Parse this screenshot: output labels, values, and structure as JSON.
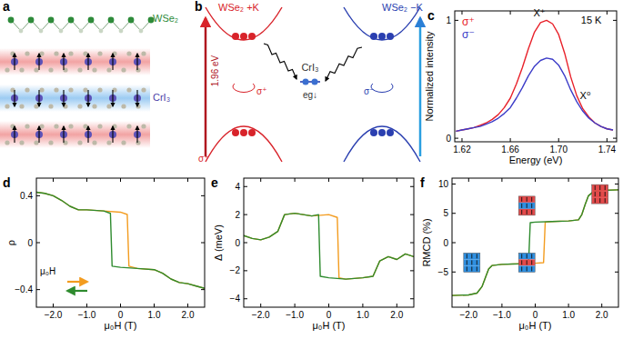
{
  "chart_data": [
    {
      "type": "line",
      "title": "c",
      "xlabel": "Energy (eV)",
      "ylabel": "Normalized intensity",
      "x": [
        1.615,
        1.62,
        1.625,
        1.63,
        1.635,
        1.64,
        1.645,
        1.65,
        1.655,
        1.66,
        1.665,
        1.67,
        1.675,
        1.68,
        1.685,
        1.69,
        1.695,
        1.7,
        1.705,
        1.71,
        1.715,
        1.72,
        1.725,
        1.73,
        1.735,
        1.74,
        1.745
      ],
      "series": [
        {
          "name": "σ⁺",
          "color": "#e8212a",
          "values": [
            0.06,
            0.07,
            0.08,
            0.09,
            0.11,
            0.13,
            0.16,
            0.2,
            0.26,
            0.34,
            0.46,
            0.6,
            0.76,
            0.9,
            0.98,
            1.0,
            0.97,
            0.88,
            0.72,
            0.52,
            0.36,
            0.25,
            0.18,
            0.13,
            0.1,
            0.08,
            0.07
          ]
        },
        {
          "name": "σ⁻",
          "color": "#3c3cc8",
          "values": [
            0.06,
            0.07,
            0.08,
            0.09,
            0.1,
            0.12,
            0.14,
            0.17,
            0.21,
            0.26,
            0.34,
            0.43,
            0.53,
            0.61,
            0.66,
            0.68,
            0.67,
            0.62,
            0.53,
            0.41,
            0.31,
            0.23,
            0.17,
            0.13,
            0.1,
            0.08,
            0.07
          ]
        }
      ],
      "xlim": [
        1.614,
        1.748
      ],
      "ylim": [
        -0.03,
        1.08
      ],
      "xticks": [
        1.62,
        1.66,
        {
          "value": 1.7,
          "label": "1.70"
        },
        1.74
      ],
      "yticks": [
        0,
        1
      ],
      "legend": "upper left",
      "annotations": [
        {
          "text": "15 K",
          "x": 1.727,
          "y": 0.97
        },
        {
          "text": "X⁺",
          "x": 1.684,
          "y": 1.03
        },
        {
          "text": "X⁰",
          "x": 1.722,
          "y": 0.33
        }
      ]
    },
    {
      "type": "line",
      "title": "d",
      "xlabel": "μ₀H (T)",
      "ylabel": "ρ",
      "series": [
        {
          "color": "#f39c1f",
          "x": [
            -2.5,
            -2.25,
            -2.0,
            -1.75,
            -1.5,
            -1.25,
            -1.0,
            -0.5,
            0,
            0.2,
            0.25,
            0.5,
            1.0,
            1.25,
            1.5,
            1.75,
            2.0,
            2.25,
            2.5
          ],
          "values": [
            0.43,
            0.42,
            0.4,
            0.36,
            0.31,
            0.28,
            0.28,
            0.27,
            0.26,
            0.24,
            -0.2,
            -0.22,
            -0.23,
            -0.26,
            -0.31,
            -0.34,
            -0.35,
            -0.37,
            -0.39
          ]
        },
        {
          "color": "#2e8b2e",
          "x": [
            2.5,
            2.25,
            2.0,
            1.75,
            1.5,
            1.25,
            1.0,
            0.5,
            0,
            -0.25,
            -0.3,
            -0.5,
            -1.0,
            -1.25,
            -1.5,
            -1.75,
            -2.0,
            -2.25,
            -2.5
          ],
          "values": [
            -0.39,
            -0.37,
            -0.35,
            -0.34,
            -0.31,
            -0.26,
            -0.23,
            -0.22,
            -0.21,
            -0.2,
            0.25,
            0.27,
            0.28,
            0.28,
            0.31,
            0.36,
            0.4,
            0.42,
            0.43
          ]
        }
      ],
      "xlim": [
        -2.5,
        2.5
      ],
      "ylim": [
        -0.55,
        0.55
      ],
      "xticks": [
        {
          "value": -2,
          "label": "−2.0"
        },
        {
          "value": -1,
          "label": "−1.0"
        },
        0,
        {
          "value": 1,
          "label": "1.0"
        },
        {
          "value": 2,
          "label": "2.0"
        }
      ],
      "yticks": [
        {
          "value": -0.4,
          "label": "−0.4"
        },
        0,
        0.4
      ],
      "legend": "lower left",
      "annotations": [
        {
          "text": "μ₀H"
        }
      ]
    },
    {
      "type": "line",
      "title": "e",
      "xlabel": "μ₀H (T)",
      "ylabel": "Δ (meV)",
      "series": [
        {
          "color": "#f39c1f",
          "x": [
            -2.5,
            -2.25,
            -2.0,
            -1.75,
            -1.5,
            -1.3,
            -1.0,
            -0.5,
            0,
            0.25,
            0.3,
            0.5,
            1.0,
            1.3,
            1.5,
            1.75,
            2.0,
            2.25,
            2.5
          ],
          "values": [
            0.5,
            0.3,
            0.2,
            0.4,
            0.8,
            2.0,
            2.1,
            1.9,
            2.0,
            1.8,
            -2.5,
            -2.6,
            -2.5,
            -2.4,
            -1.3,
            -1.0,
            -1.2,
            -0.8,
            -1.0
          ]
        },
        {
          "color": "#2e8b2e",
          "x": [
            2.5,
            2.25,
            2.0,
            1.75,
            1.5,
            1.3,
            1.0,
            0.5,
            0,
            -0.25,
            -0.3,
            -0.5,
            -1.0,
            -1.3,
            -1.5,
            -1.75,
            -2.0,
            -2.25,
            -2.5
          ],
          "values": [
            -1.0,
            -0.8,
            -1.2,
            -1.0,
            -1.3,
            -2.4,
            -2.5,
            -2.6,
            -2.5,
            -2.4,
            2.0,
            1.9,
            2.1,
            2.0,
            0.8,
            0.4,
            0.2,
            0.3,
            0.5
          ]
        }
      ],
      "xlim": [
        -2.5,
        2.5
      ],
      "ylim": [
        -4.6,
        4.6
      ],
      "xticks": [
        {
          "value": -2,
          "label": "−2.0"
        },
        {
          "value": -1,
          "label": "−1.0"
        },
        0,
        {
          "value": 1,
          "label": "1.0"
        },
        {
          "value": 2,
          "label": "2.0"
        }
      ],
      "yticks": [
        {
          "value": -4,
          "label": "−4"
        },
        {
          "value": -2,
          "label": "−2"
        },
        0,
        2,
        4
      ]
    },
    {
      "type": "line",
      "title": "f",
      "xlabel": "μ₀H (T)",
      "ylabel": "RMCD (%)",
      "series": [
        {
          "color": "#f39c1f",
          "x": [
            -2.5,
            -2.0,
            -1.75,
            -1.6,
            -1.5,
            -1.4,
            -1.3,
            -1.0,
            -0.5,
            0,
            0.25,
            0.3,
            0.5,
            1.0,
            1.3,
            1.4,
            1.5,
            1.6,
            1.75,
            2.0,
            2.5
          ],
          "values": [
            -9.0,
            -8.9,
            -8.6,
            -7.5,
            -6.0,
            -4.5,
            -3.9,
            -3.7,
            -3.6,
            -3.5,
            -3.4,
            3.5,
            3.6,
            3.7,
            3.9,
            4.8,
            6.5,
            8.0,
            8.7,
            8.9,
            9.0
          ]
        },
        {
          "color": "#2e8b2e",
          "x": [
            2.5,
            2.0,
            1.75,
            1.6,
            1.5,
            1.4,
            1.3,
            1.0,
            0.5,
            0,
            -0.15,
            -0.2,
            -0.5,
            -1.0,
            -1.3,
            -1.4,
            -1.5,
            -1.6,
            -1.75,
            -2.0,
            -2.5
          ],
          "values": [
            9.0,
            8.9,
            8.7,
            8.0,
            6.5,
            4.8,
            3.9,
            3.7,
            3.6,
            3.5,
            3.4,
            -3.5,
            -3.6,
            -3.7,
            -3.9,
            -4.5,
            -6.0,
            -7.5,
            -8.6,
            -8.9,
            -9.0
          ]
        }
      ],
      "xlim": [
        -2.5,
        2.5
      ],
      "ylim": [
        -11,
        11
      ],
      "xticks": [
        {
          "value": -2,
          "label": "−2.0"
        },
        {
          "value": -1,
          "label": "−1.0"
        },
        0,
        {
          "value": 1,
          "label": "1.0"
        },
        {
          "value": 2,
          "label": "2.0"
        }
      ],
      "yticks": [
        {
          "value": -5,
          "label": "−5"
        },
        0,
        5,
        10
      ]
    }
  ],
  "diagram_a": {
    "title": "a",
    "top_layer": "WSe₂",
    "bottom_layers": "CrI₃"
  },
  "diagram_b": {
    "title": "b",
    "left_valley": "WSe₂ +K",
    "right_valley": "WSe₂ −K",
    "center": "CrI₃",
    "energy": "1.96 eV",
    "left_polarization": "σ⁺",
    "left_emission": "σ⁺",
    "right_emission": "σ⁻",
    "level": "eg↓"
  }
}
